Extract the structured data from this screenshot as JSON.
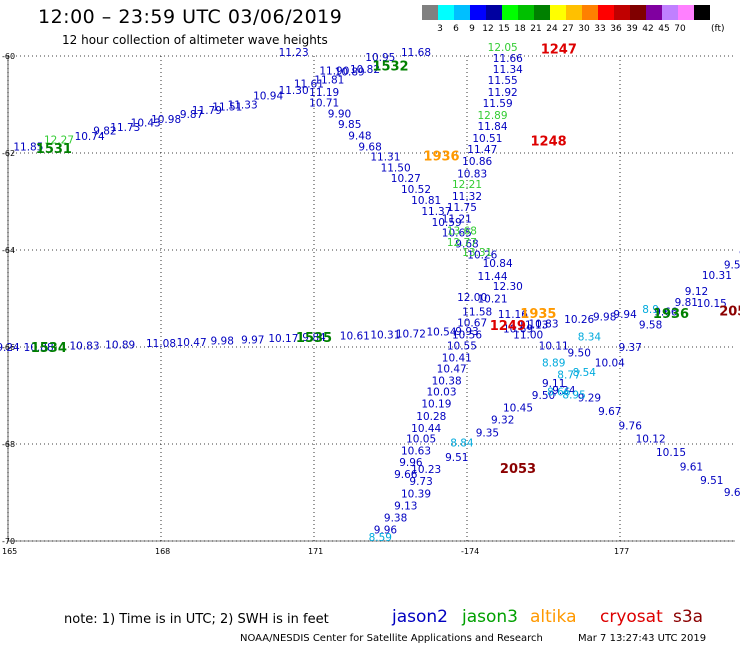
{
  "title": "12:00 – 23:59 UTC 03/06/2019",
  "subtitle": "12 hour collection of altimeter wave heights",
  "color_scale": {
    "unit": "(ft)",
    "colors": [
      "#808080",
      "#00ffff",
      "#00bfff",
      "#0000ff",
      "#0000a0",
      "#00ff00",
      "#00c000",
      "#008000",
      "#ffff00",
      "#ffc000",
      "#ff8000",
      "#ff0000",
      "#c00000",
      "#800000",
      "#8000a0",
      "#c080ff",
      "#ff80ff",
      "#000000"
    ],
    "labels": [
      "3",
      "6",
      "9",
      "12",
      "15",
      "18",
      "21",
      "24",
      "27",
      "30",
      "33",
      "36",
      "39",
      "42",
      "45",
      "70"
    ]
  },
  "note": "note: 1) Time is in UTC; 2) SWH is in feet",
  "satellites": [
    {
      "name": "jason2",
      "color": "#0000c0"
    },
    {
      "name": "jason3",
      "color": "#00a000"
    },
    {
      "name": "altika",
      "color": "#ff9900"
    },
    {
      "name": "cryosat",
      "color": "#dd0000"
    },
    {
      "name": "s3a",
      "color": "#8b0000"
    }
  ],
  "credit": "NOAA/NESDIS Center for Satellite Applications and Research",
  "timestamp": "Mar  7 13:27:43 UTC 2019",
  "axes": {
    "lat_labels": [
      "-60",
      "-62",
      "-64",
      "-66",
      "-68",
      "-70"
    ],
    "lon_labels": [
      "165",
      "168",
      "171",
      "-174",
      "177"
    ]
  },
  "tracks": [
    {
      "satellite": "jason2",
      "points": [
        {
          "lon": 165.4,
          "lat": -61.95,
          "v": "11.85"
        },
        {
          "lon": 166.6,
          "lat": -61.73,
          "v": "10.74"
        },
        {
          "lon": 166.9,
          "lat": -61.62,
          "v": "9.82"
        },
        {
          "lon": 167.3,
          "lat": -61.55,
          "v": "11.73"
        },
        {
          "lon": 167.7,
          "lat": -61.45,
          "v": "10.43"
        },
        {
          "lon": 168.1,
          "lat": -61.38,
          "v": "10.98"
        },
        {
          "lon": 168.6,
          "lat": -61.28,
          "v": "9.87"
        },
        {
          "lon": 168.9,
          "lat": -61.2,
          "v": "11.79"
        },
        {
          "lon": 169.3,
          "lat": -61.12,
          "v": "11.51"
        },
        {
          "lon": 169.6,
          "lat": -61.08,
          "v": "11.33"
        },
        {
          "lon": 170.1,
          "lat": -60.9,
          "v": "10.94"
        },
        {
          "lon": 170.6,
          "lat": -60.78,
          "v": "11.30"
        },
        {
          "lon": 170.9,
          "lat": -60.65,
          "v": "11.61"
        },
        {
          "lon": 171.3,
          "lat": -60.57,
          "v": "11.81"
        },
        {
          "lon": 171.4,
          "lat": -60.38,
          "v": "11.90"
        },
        {
          "lon": 170.6,
          "lat": -60.0,
          "v": "11.23"
        },
        {
          "lon": 171.7,
          "lat": -60.4,
          "v": "10.89"
        },
        {
          "lon": 172.0,
          "lat": -60.35,
          "v": "10.82"
        },
        {
          "lon": 172.3,
          "lat": -60.1,
          "v": "10.95"
        },
        {
          "lon": 173.0,
          "lat": -60.0,
          "v": "11.68"
        },
        {
          "lon": 171.2,
          "lat": -60.82,
          "v": "11.19"
        },
        {
          "lon": 171.2,
          "lat": -61.04,
          "v": "10.71"
        },
        {
          "lon": 171.5,
          "lat": -61.27,
          "v": "9.90"
        },
        {
          "lon": 171.7,
          "lat": -61.48,
          "v": "9.85"
        },
        {
          "lon": 171.9,
          "lat": -61.72,
          "v": "9.48"
        },
        {
          "lon": 172.1,
          "lat": -61.95,
          "v": "9.68"
        },
        {
          "lon": 172.4,
          "lat": -62.15,
          "v": "11.31"
        },
        {
          "lon": 172.6,
          "lat": -62.38,
          "v": "11.50"
        },
        {
          "lon": 172.8,
          "lat": -62.6,
          "v": "10.27"
        },
        {
          "lon": 173.0,
          "lat": -62.82,
          "v": "10.52"
        },
        {
          "lon": 173.2,
          "lat": -63.05,
          "v": "10.81"
        },
        {
          "lon": 173.4,
          "lat": -63.28,
          "v": "11.37"
        },
        {
          "lon": 173.6,
          "lat": -63.5,
          "v": "10.59"
        },
        {
          "lon": 173.8,
          "lat": -63.72,
          "v": "10.65"
        },
        {
          "lon": 174.0,
          "lat": -63.95,
          "v": "9.68"
        },
        {
          "lon": 174.3,
          "lat": -64.18,
          "v": "10.26"
        },
        {
          "lon": 174.6,
          "lat": -64.35,
          "v": "10.84"
        },
        {
          "lon": 174.5,
          "lat": -64.62,
          "v": "11.44"
        },
        {
          "lon": 174.8,
          "lat": -64.82,
          "v": "12.30"
        },
        {
          "lon": 174.1,
          "lat": -65.05,
          "v": "12.00"
        },
        {
          "lon": 174.5,
          "lat": -65.08,
          "v": "10.21"
        },
        {
          "lon": 174.2,
          "lat": -65.35,
          "v": "11.58"
        },
        {
          "lon": 174.9,
          "lat": -65.4,
          "v": "11.16"
        },
        {
          "lon": 174.1,
          "lat": -65.58,
          "v": "10.67"
        },
        {
          "lon": 174.0,
          "lat": -65.82,
          "v": "10.56"
        },
        {
          "lon": 173.9,
          "lat": -66.05,
          "v": "10.55"
        },
        {
          "lon": 173.8,
          "lat": -66.3,
          "v": "10.41"
        },
        {
          "lon": 173.7,
          "lat": -66.53,
          "v": "10.47"
        },
        {
          "lon": 173.6,
          "lat": -66.77,
          "v": "10.38"
        },
        {
          "lon": 173.5,
          "lat": -67.0,
          "v": "10.03"
        },
        {
          "lon": 173.4,
          "lat": -67.25,
          "v": "10.19"
        },
        {
          "lon": 173.3,
          "lat": -67.5,
          "v": "10.28"
        },
        {
          "lon": 173.2,
          "lat": -67.75,
          "v": "10.44"
        },
        {
          "lon": 173.1,
          "lat": -67.97,
          "v": "10.05"
        },
        {
          "lon": 173.0,
          "lat": -68.22,
          "v": "10.63"
        },
        {
          "lon": 172.9,
          "lat": -68.45,
          "v": "9.96"
        },
        {
          "lon": 172.8,
          "lat": -68.7,
          "v": "9.66"
        },
        {
          "lon": 175.0,
          "lat": -65.7,
          "v": "10.69"
        },
        {
          "lon": 175.3,
          "lat": -65.62,
          "v": "11.13"
        },
        {
          "lon": 175.5,
          "lat": -65.6,
          "v": "10.83"
        },
        {
          "lon": 175.2,
          "lat": -65.82,
          "v": "11.00"
        },
        {
          "lon": 175.7,
          "lat": -66.05,
          "v": "10.11"
        },
        {
          "lon": 176.2,
          "lat": -65.5,
          "v": "10.26"
        },
        {
          "lon": 176.7,
          "lat": -65.45,
          "v": "9.98"
        },
        {
          "lon": 177.1,
          "lat": -65.4,
          "v": "9.94"
        },
        {
          "lon": 177.9,
          "lat": -65.35,
          "v": "9.66"
        },
        {
          "lon": 177.6,
          "lat": -65.62,
          "v": "9.58"
        },
        {
          "lon": 178.3,
          "lat": -65.15,
          "v": "9.81"
        },
        {
          "lon": 178.5,
          "lat": -64.93,
          "v": "9.12"
        },
        {
          "lon": 178.9,
          "lat": -64.6,
          "v": "10.31"
        },
        {
          "lon": 179.2,
          "lat": -64.38,
          "v": "9.5"
        },
        {
          "lon": 179.4,
          "lat": -64.15,
          "v": "9"
        },
        {
          "lon": 178.8,
          "lat": -65.18,
          "v": "10.15"
        },
        {
          "lon": 177.2,
          "lat": -66.08,
          "v": "9.37"
        },
        {
          "lon": 176.8,
          "lat": -66.4,
          "v": "10.04"
        },
        {
          "lon": 176.2,
          "lat": -66.2,
          "v": "9.50"
        },
        {
          "lon": 176.4,
          "lat": -67.12,
          "v": "9.29"
        },
        {
          "lon": 176.8,
          "lat": -67.4,
          "v": "9.67"
        },
        {
          "lon": 177.2,
          "lat": -67.7,
          "v": "9.76"
        },
        {
          "lon": 177.6,
          "lat": -67.97,
          "v": "10.12"
        },
        {
          "lon": 178.0,
          "lat": -68.25,
          "v": "10.15"
        },
        {
          "lon": 178.4,
          "lat": -68.55,
          "v": "9.61"
        },
        {
          "lon": 178.8,
          "lat": -68.82,
          "v": "9.51"
        },
        {
          "lon": 179.2,
          "lat": -69.07,
          "v": "9.6"
        },
        {
          "lon": 175.9,
          "lat": -66.97,
          "v": "9.24"
        },
        {
          "lon": 175.7,
          "lat": -66.82,
          "v": "9.11"
        },
        {
          "lon": 175.5,
          "lat": -67.07,
          "v": "9.50"
        },
        {
          "lon": 175.0,
          "lat": -67.33,
          "v": "10.45"
        },
        {
          "lon": 174.7,
          "lat": -67.58,
          "v": "9.32"
        },
        {
          "lon": 174.4,
          "lat": -67.85,
          "v": "9.35"
        },
        {
          "lon": 173.8,
          "lat": -68.35,
          "v": "9.51"
        },
        {
          "lon": 173.2,
          "lat": -68.6,
          "v": "10.23"
        },
        {
          "lon": 173.1,
          "lat": -68.85,
          "v": "9.73"
        },
        {
          "lon": 173.0,
          "lat": -69.1,
          "v": "10.39"
        },
        {
          "lon": 172.8,
          "lat": -69.35,
          "v": "9.13"
        },
        {
          "lon": 172.6,
          "lat": -69.6,
          "v": "9.38"
        },
        {
          "lon": 172.4,
          "lat": -69.85,
          "v": "9.96"
        },
        {
          "lon": 174.8,
          "lat": -60.12,
          "v": "11.66"
        },
        {
          "lon": 174.8,
          "lat": -60.35,
          "v": "11.34"
        },
        {
          "lon": 174.7,
          "lat": -60.58,
          "v": "11.55"
        },
        {
          "lon": 174.7,
          "lat": -60.82,
          "v": "11.92"
        },
        {
          "lon": 174.6,
          "lat": -61.05,
          "v": "11.59"
        },
        {
          "lon": 174.5,
          "lat": -61.53,
          "v": "11.84"
        },
        {
          "lon": 174.4,
          "lat": -61.77,
          "v": "10.51"
        },
        {
          "lon": 174.3,
          "lat": -62.0,
          "v": "11.47"
        },
        {
          "lon": 174.2,
          "lat": -62.25,
          "v": "10.86"
        },
        {
          "lon": 174.1,
          "lat": -62.5,
          "v": "10.83"
        },
        {
          "lon": 174.0,
          "lat": -62.97,
          "v": "11.32"
        },
        {
          "lon": 173.9,
          "lat": -63.2,
          "v": "11.75"
        },
        {
          "lon": 173.8,
          "lat": -63.43,
          "v": "11.21"
        },
        {
          "lon": 165.0,
          "lat": -66.08,
          "v": "9.24"
        },
        {
          "lon": 165.6,
          "lat": -66.08,
          "v": "10.88"
        },
        {
          "lon": 166.5,
          "lat": -66.05,
          "v": "10.83"
        },
        {
          "lon": 167.2,
          "lat": -66.03,
          "v": "10.89"
        },
        {
          "lon": 168.0,
          "lat": -66.0,
          "v": "11.08"
        },
        {
          "lon": 168.6,
          "lat": -65.98,
          "v": "10.47"
        },
        {
          "lon": 169.2,
          "lat": -65.95,
          "v": "9.98"
        },
        {
          "lon": 169.8,
          "lat": -65.93,
          "v": "9.97"
        },
        {
          "lon": 170.4,
          "lat": -65.9,
          "v": "10.17"
        },
        {
          "lon": 171.0,
          "lat": -65.88,
          "v": "9.84"
        },
        {
          "lon": 171.8,
          "lat": -65.85,
          "v": "10.61"
        },
        {
          "lon": 172.4,
          "lat": -65.82,
          "v": "10.31"
        },
        {
          "lon": 172.9,
          "lat": -65.8,
          "v": "10.72"
        },
        {
          "lon": 173.5,
          "lat": -65.76,
          "v": "10.54"
        },
        {
          "lon": 174.0,
          "lat": -65.75,
          "v": "9.93"
        }
      ]
    },
    {
      "satellite": "jason3",
      "points": [
        {
          "lon": 166.0,
          "lat": -61.8,
          "v": "12.27"
        },
        {
          "lon": 174.7,
          "lat": -59.9,
          "v": "12.05"
        },
        {
          "lon": 174.5,
          "lat": -61.3,
          "v": "12.89"
        },
        {
          "lon": 174.0,
          "lat": -62.72,
          "v": "12.21"
        },
        {
          "lon": 173.9,
          "lat": -63.68,
          "v": "13.68"
        },
        {
          "lon": 173.9,
          "lat": -63.92,
          "v": "12.77"
        },
        {
          "lon": 174.2,
          "lat": -64.12,
          "v": "13.31"
        }
      ]
    },
    {
      "satellite": "jason2-light",
      "points": [
        {
          "lon": 176.4,
          "lat": -65.87,
          "v": "8.34"
        },
        {
          "lon": 175.7,
          "lat": -66.4,
          "v": "8.89"
        },
        {
          "lon": 176.0,
          "lat": -66.65,
          "v": "8.77"
        },
        {
          "lon": 176.3,
          "lat": -66.6,
          "v": "8.54"
        },
        {
          "lon": 175.8,
          "lat": -67.0,
          "v": "8.66"
        },
        {
          "lon": 176.1,
          "lat": -67.06,
          "v": "8.95"
        },
        {
          "lon": 173.9,
          "lat": -68.05,
          "v": "8.84"
        },
        {
          "lon": 172.3,
          "lat": -70.0,
          "v": "8.59"
        },
        {
          "lon": 177.6,
          "lat": -65.3,
          "v": "8.9"
        }
      ]
    }
  ],
  "pass_labels": [
    {
      "text": "1531",
      "lon": 165.9,
      "lat": -62.0,
      "color": "#008000"
    },
    {
      "text": "1532",
      "lon": 172.5,
      "lat": -60.3,
      "color": "#008000"
    },
    {
      "text": "1936",
      "lon": 173.5,
      "lat": -62.15,
      "color": "#ff9900"
    },
    {
      "text": "1247",
      "lon": 175.8,
      "lat": -59.95,
      "color": "#dd0000"
    },
    {
      "text": "1248",
      "lon": 175.6,
      "lat": -61.85,
      "color": "#dd0000"
    },
    {
      "text": "1935",
      "lon": 175.4,
      "lat": -65.4,
      "color": "#ff9900"
    },
    {
      "text": "1249",
      "lon": 174.8,
      "lat": -65.65,
      "color": "#dd0000"
    },
    {
      "text": "1936",
      "lon": 178.0,
      "lat": -65.4,
      "color": "#008000"
    },
    {
      "text": "2054",
      "lon": 179.3,
      "lat": -65.35,
      "color": "#8b0000"
    },
    {
      "text": "2053",
      "lon": 175.0,
      "lat": -68.6,
      "color": "#8b0000"
    },
    {
      "text": "1535",
      "lon": 171.0,
      "lat": -65.9,
      "color": "#008000"
    },
    {
      "text": "1534",
      "lon": 165.8,
      "lat": -66.1,
      "color": "#008000"
    }
  ]
}
